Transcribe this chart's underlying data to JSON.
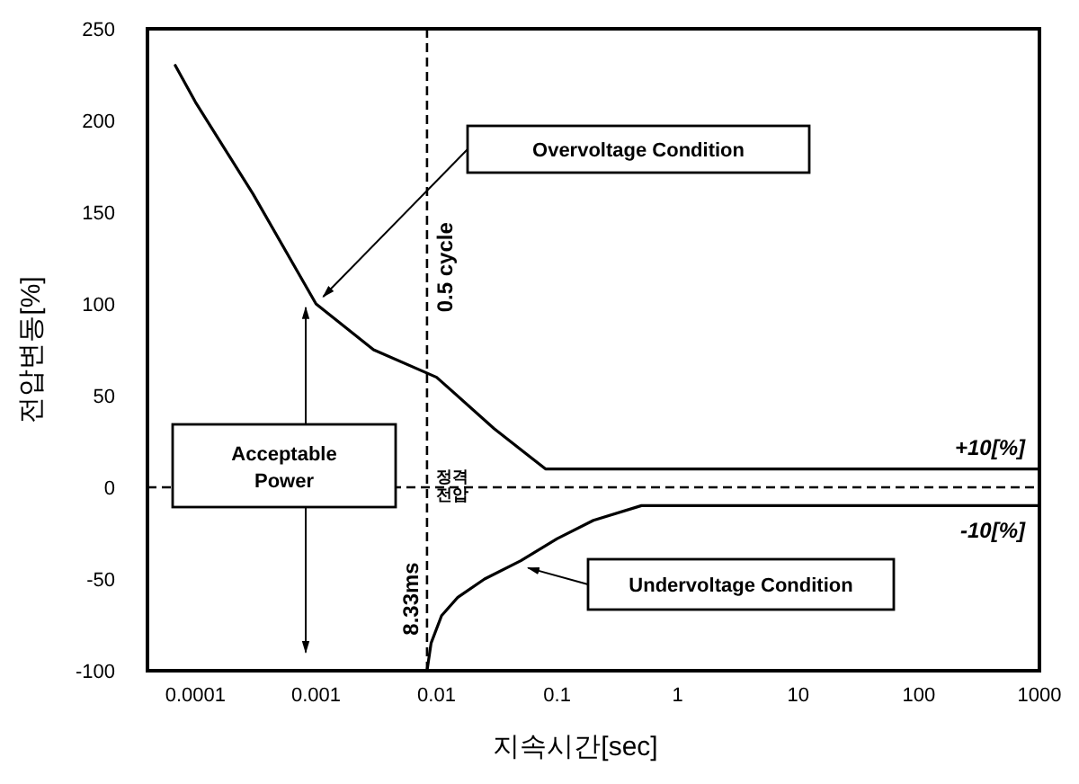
{
  "chart_data": {
    "type": "line",
    "xlabel": "지속시간[sec]",
    "ylabel": "전압변동[%]",
    "log": "x",
    "grid": false,
    "marker": "none",
    "line_style": "solid",
    "xlim": [
      4e-05,
      1000
    ],
    "xticks": [
      0.0001,
      0.001,
      0.01,
      0.1,
      1,
      10,
      100,
      1000
    ],
    "ylim": [
      -100,
      250
    ],
    "yticks": [
      -100,
      -50,
      0,
      50,
      100,
      150,
      200,
      250
    ],
    "series": [
      {
        "color": "#000000",
        "x": [
          6.8e-05,
          0.0001,
          0.0003,
          0.001,
          0.003,
          0.01,
          0.03,
          0.08,
          1000
        ],
        "values": [
          230,
          210,
          160,
          100,
          75,
          60,
          32,
          10,
          10
        ]
      },
      {
        "color": "#000000",
        "x": [
          0.00833,
          0.009,
          0.011,
          0.015,
          0.025,
          0.05,
          0.1,
          0.2,
          0.5,
          1000
        ],
        "values": [
          -100,
          -85,
          -70,
          -60,
          -50,
          -40,
          -28,
          -18,
          -10,
          -10
        ]
      }
    ],
    "ref_lines": [
      {
        "axis": "x",
        "value": 0.00833,
        "label": "0.5 cycle",
        "line_style": "dashed",
        "color": "#000000"
      },
      {
        "axis": "y",
        "value": 0,
        "label": "정격 전압",
        "line_style": "dashed",
        "color": "#000000"
      }
    ],
    "annotations": [
      "Overvoltage Condition",
      "Undervoltage Condition",
      "Acceptable Power",
      "+10[%]",
      "-10[%]",
      "8.33ms"
    ]
  }
}
